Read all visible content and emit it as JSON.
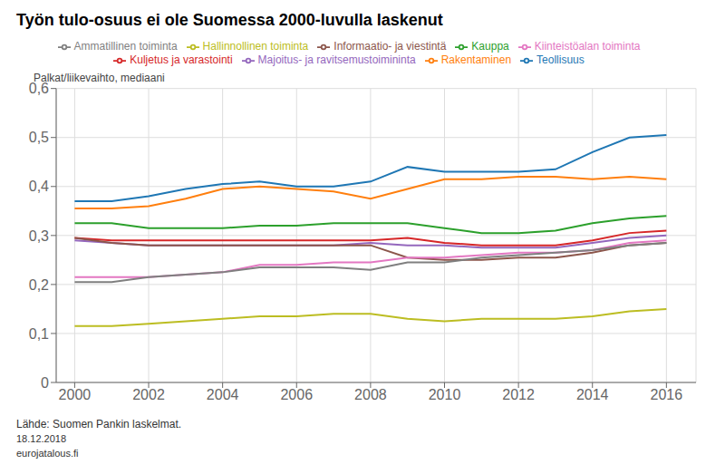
{
  "chart_data": {
    "type": "line",
    "title": "Työn tulo-osuus ei ole Suomessa 2000-luvulla laskenut",
    "ylabel": "Palkat/liikevaihto,  mediaani",
    "annotations": [
      "Lähde: Suomen Pankin laskelmat.",
      "18.12.2018",
      "eurojatalous.fi"
    ],
    "x": [
      2000,
      2001,
      2002,
      2003,
      2004,
      2005,
      2006,
      2007,
      2008,
      2009,
      2010,
      2011,
      2012,
      2013,
      2014,
      2015,
      2016
    ],
    "series": [
      {
        "name": "Teollisuus",
        "color": "#1f77b4",
        "values": [
          0.37,
          0.37,
          0.38,
          0.395,
          0.405,
          0.41,
          0.4,
          0.4,
          0.41,
          0.44,
          0.43,
          0.43,
          0.43,
          0.435,
          0.47,
          0.5,
          0.505
        ]
      },
      {
        "name": "Rakentaminen",
        "color": "#ff7f0e",
        "values": [
          0.355,
          0.355,
          0.36,
          0.375,
          0.395,
          0.4,
          0.395,
          0.39,
          0.375,
          0.395,
          0.415,
          0.415,
          0.42,
          0.42,
          0.415,
          0.42,
          0.415
        ]
      },
      {
        "name": "Kauppa",
        "color": "#2ca02c",
        "values": [
          0.325,
          0.325,
          0.315,
          0.315,
          0.315,
          0.32,
          0.32,
          0.325,
          0.325,
          0.325,
          0.315,
          0.305,
          0.305,
          0.31,
          0.325,
          0.335,
          0.34
        ]
      },
      {
        "name": "Kuljetus ja varastointi",
        "color": "#d62728",
        "values": [
          0.295,
          0.29,
          0.29,
          0.29,
          0.29,
          0.29,
          0.29,
          0.29,
          0.29,
          0.295,
          0.285,
          0.28,
          0.28,
          0.28,
          0.29,
          0.305,
          0.31
        ]
      },
      {
        "name": "Majoitus- ja ravitsemustoimininta",
        "color": "#9467bd",
        "values": [
          0.29,
          0.285,
          0.28,
          0.28,
          0.28,
          0.28,
          0.28,
          0.28,
          0.285,
          0.28,
          0.28,
          0.275,
          0.275,
          0.275,
          0.285,
          0.295,
          0.3
        ]
      },
      {
        "name": "Informaatio- ja viestintä",
        "color": "#8c564b",
        "values": [
          0.295,
          0.285,
          0.28,
          0.28,
          0.28,
          0.28,
          0.28,
          0.28,
          0.28,
          0.255,
          0.25,
          0.25,
          0.255,
          0.255,
          0.265,
          0.28,
          0.285
        ]
      },
      {
        "name": "Kiinteistöalan toiminta",
        "color": "#e377c2",
        "values": [
          0.215,
          0.215,
          0.215,
          0.22,
          0.225,
          0.24,
          0.24,
          0.245,
          0.245,
          0.255,
          0.255,
          0.26,
          0.265,
          0.265,
          0.27,
          0.285,
          0.29
        ]
      },
      {
        "name": "Ammatillinen toiminta",
        "color": "#7f7f7f",
        "values": [
          0.205,
          0.205,
          0.215,
          0.22,
          0.225,
          0.235,
          0.235,
          0.235,
          0.23,
          0.245,
          0.245,
          0.255,
          0.26,
          0.265,
          0.27,
          0.28,
          0.285
        ]
      },
      {
        "name": "Hallinnollinen toiminta",
        "color": "#bcbd22",
        "values": [
          0.115,
          0.115,
          0.12,
          0.125,
          0.13,
          0.135,
          0.135,
          0.14,
          0.14,
          0.13,
          0.125,
          0.13,
          0.13,
          0.13,
          0.135,
          0.145,
          0.15
        ]
      }
    ],
    "xlim": [
      1999.5,
      2016.8
    ],
    "xticks": [
      2000,
      2002,
      2004,
      2006,
      2008,
      2010,
      2012,
      2014,
      2016
    ],
    "ylim": [
      0,
      0.6
    ],
    "yticks": [
      0,
      {
        "value": 0.1,
        "label": "0,1"
      },
      {
        "value": 0.2,
        "label": "0,2"
      },
      {
        "value": 0.3,
        "label": "0,3"
      },
      {
        "value": 0.4,
        "label": "0,4"
      },
      {
        "value": 0.5,
        "label": "0,5"
      },
      {
        "value": 0.6,
        "label": "0,6"
      }
    ],
    "grid": true,
    "legend": "top"
  }
}
